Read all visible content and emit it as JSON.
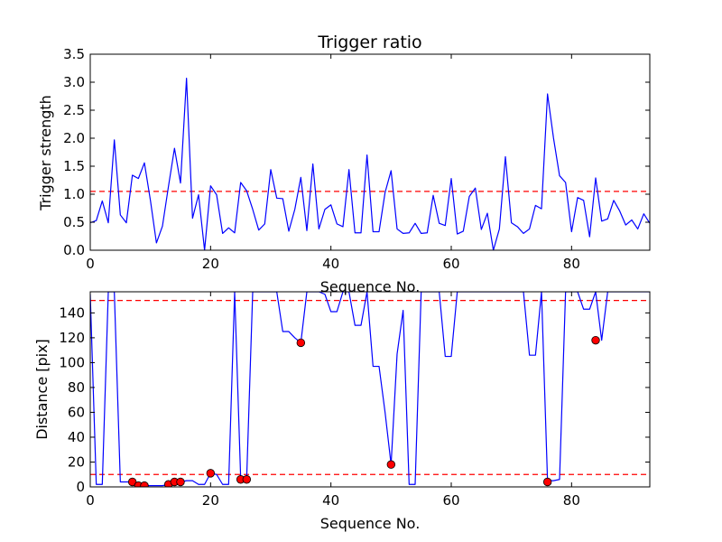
{
  "chart_data": [
    {
      "type": "line",
      "title": "Trigger ratio",
      "xlabel": "Sequence No.",
      "ylabel": "Trigger strength",
      "xlim": [
        0,
        93
      ],
      "ylim": [
        0,
        3.5
      ],
      "xticks": [
        0,
        20,
        40,
        60,
        80
      ],
      "yticks": [
        0.0,
        0.5,
        1.0,
        1.5,
        2.0,
        2.5,
        3.0,
        3.5
      ],
      "ytick_labels": [
        "0.0",
        "0.5",
        "1.0",
        "1.5",
        "2.0",
        "2.5",
        "3.0",
        "3.5"
      ],
      "grid": false,
      "series": [
        {
          "color": "#0000ff",
          "x": [
            0,
            1,
            2,
            3,
            4,
            5,
            6,
            7,
            8,
            9,
            10,
            11,
            12,
            13,
            14,
            15,
            16,
            17,
            18,
            19,
            20,
            21,
            22,
            23,
            24,
            25,
            26,
            27,
            28,
            29,
            30,
            31,
            32,
            33,
            34,
            35,
            36,
            37,
            38,
            39,
            40,
            41,
            42,
            43,
            44,
            45,
            46,
            47,
            48,
            49,
            50,
            51,
            52,
            53,
            54,
            55,
            56,
            57,
            58,
            59,
            60,
            61,
            62,
            63,
            64,
            65,
            66,
            67,
            68,
            69,
            70,
            71,
            72,
            73,
            74,
            75,
            76,
            77,
            78,
            79,
            80,
            81,
            82,
            83,
            84,
            85,
            86,
            87,
            88,
            89,
            90,
            91,
            92,
            93
          ],
          "y": [
            0.49,
            0.53,
            0.88,
            0.49,
            1.97,
            0.63,
            0.49,
            1.34,
            1.28,
            1.56,
            0.89,
            0.13,
            0.43,
            1.14,
            1.82,
            1.2,
            3.07,
            0.57,
            0.99,
            0.0,
            1.15,
            0.99,
            0.3,
            0.4,
            0.31,
            1.21,
            1.06,
            0.73,
            0.36,
            0.47,
            1.44,
            0.93,
            0.92,
            0.34,
            0.73,
            1.3,
            0.35,
            1.54,
            0.38,
            0.73,
            0.81,
            0.47,
            0.42,
            1.44,
            0.31,
            0.31,
            1.7,
            0.33,
            0.33,
            1.03,
            1.42,
            0.38,
            0.3,
            0.31,
            0.48,
            0.3,
            0.31,
            0.98,
            0.48,
            0.44,
            1.28,
            0.29,
            0.34,
            0.96,
            1.11,
            0.37,
            0.66,
            0.0,
            0.38,
            1.67,
            0.49,
            0.42,
            0.3,
            0.38,
            0.8,
            0.74,
            2.79,
            2.0,
            1.33,
            1.21,
            0.33,
            0.94,
            0.89,
            0.24,
            1.29,
            0.52,
            0.56,
            0.89,
            0.7,
            0.45,
            0.54,
            0.38,
            0.65,
            0.48
          ]
        }
      ],
      "reference_lines": [
        {
          "y": 1.05,
          "color": "#ff0000",
          "style": "dashed"
        }
      ]
    },
    {
      "type": "line",
      "title": "",
      "xlabel": "Sequence No.",
      "ylabel": "Distance [pix]",
      "xlim": [
        0,
        93
      ],
      "ylim": [
        0,
        157
      ],
      "xticks": [
        0,
        20,
        40,
        60,
        80
      ],
      "yticks": [
        0,
        20,
        40,
        60,
        80,
        100,
        120,
        140
      ],
      "grid": false,
      "series": [
        {
          "color": "#0000ff",
          "x": [
            0,
            1,
            2,
            3,
            4,
            5,
            6,
            7,
            8,
            9,
            10,
            11,
            12,
            13,
            14,
            15,
            16,
            17,
            18,
            19,
            20,
            21,
            22,
            23,
            24,
            25,
            26,
            27,
            28,
            29,
            30,
            31,
            32,
            33,
            34,
            35,
            36,
            37,
            38,
            39,
            40,
            41,
            42,
            43,
            44,
            45,
            46,
            47,
            48,
            49,
            50,
            51,
            52,
            53,
            54,
            55,
            56,
            57,
            58,
            59,
            60,
            61,
            62,
            63,
            64,
            65,
            66,
            67,
            68,
            69,
            70,
            71,
            72,
            73,
            74,
            75,
            76,
            77,
            78,
            79,
            80,
            81,
            82,
            83,
            84,
            85,
            86,
            87,
            88,
            89,
            90,
            91,
            92,
            93
          ],
          "y": [
            155,
            2,
            2,
            157,
            157,
            4,
            4,
            4,
            2,
            1,
            1,
            1,
            1,
            2,
            4,
            4,
            5,
            5,
            2,
            2,
            11,
            10,
            2,
            2,
            157,
            7,
            7,
            157,
            157,
            157,
            157,
            157,
            125,
            125,
            120,
            116,
            157,
            157,
            157,
            155,
            141,
            141,
            157,
            157,
            130,
            130,
            157,
            97,
            97,
            60,
            18,
            107,
            142,
            2,
            2,
            157,
            157,
            157,
            157,
            105,
            105,
            157,
            157,
            157,
            157,
            157,
            157,
            157,
            157,
            157,
            157,
            157,
            157,
            106,
            106,
            157,
            5,
            5,
            6,
            157,
            157,
            157,
            143,
            143,
            157,
            118,
            157,
            157,
            157,
            157,
            157,
            157,
            157,
            157
          ]
        },
        {
          "name": "",
          "type": "scatter",
          "color": "#ff0000",
          "x": [
            7,
            8,
            9,
            13,
            14,
            15,
            20,
            25,
            26,
            35,
            50,
            76,
            84
          ],
          "y": [
            4,
            1,
            1,
            2,
            4,
            4,
            11,
            6,
            6,
            116,
            18,
            4,
            118
          ]
        }
      ],
      "reference_lines": [
        {
          "y": 150,
          "color": "#ff0000",
          "style": "dashed"
        },
        {
          "y": 10,
          "color": "#ff0000",
          "style": "dashed"
        }
      ]
    }
  ]
}
